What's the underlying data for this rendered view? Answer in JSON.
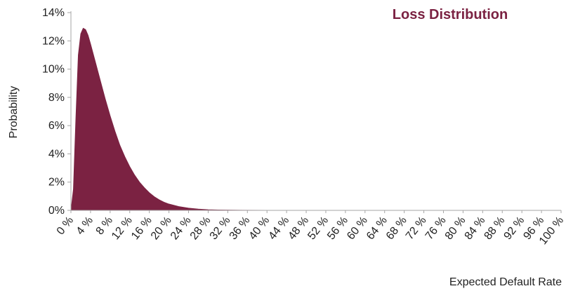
{
  "chart_data": {
    "type": "area",
    "title": "Loss Distribution",
    "xlabel": "Expected Default Rate",
    "ylabel": "Probability",
    "x_tick_labels": [
      "0 %",
      "4 %",
      "8 %",
      "12 %",
      "16 %",
      "20 %",
      "24 %",
      "28 %",
      "32 %",
      "36 %",
      "40 %",
      "44 %",
      "48 %",
      "52 %",
      "56 %",
      "60 %",
      "64 %",
      "68 %",
      "72 %",
      "76 %",
      "80 %",
      "84 %",
      "88 %",
      "92 %",
      "96 %",
      "100 %"
    ],
    "y_tick_labels": [
      "0%",
      "2%",
      "4%",
      "6%",
      "8%",
      "10%",
      "12%",
      "14%"
    ],
    "xlim": [
      0,
      100
    ],
    "ylim": [
      0,
      14
    ],
    "grid": false,
    "legend": "none",
    "series": [
      {
        "color": "#7b2242",
        "x": [
          0,
          0.5,
          1,
          1.5,
          2,
          2.5,
          3,
          3.5,
          4,
          5,
          6,
          7,
          8,
          9,
          10,
          11,
          12,
          13,
          14,
          15,
          16,
          17,
          18,
          19,
          20,
          22,
          24,
          26,
          28,
          30,
          35,
          40,
          50,
          60,
          68
        ],
        "values": [
          0,
          1.5,
          6.5,
          11.0,
          12.5,
          12.9,
          12.8,
          12.4,
          11.8,
          10.5,
          9.2,
          7.9,
          6.7,
          5.6,
          4.6,
          3.8,
          3.1,
          2.5,
          2.0,
          1.6,
          1.25,
          0.97,
          0.75,
          0.58,
          0.45,
          0.27,
          0.16,
          0.09,
          0.05,
          0.03,
          0.01,
          0.005,
          0,
          0,
          0
        ]
      }
    ]
  },
  "colors": {
    "series": "#7b2242",
    "title": "#7b2242",
    "axis": "#a6a6a6",
    "text": "#222222"
  }
}
